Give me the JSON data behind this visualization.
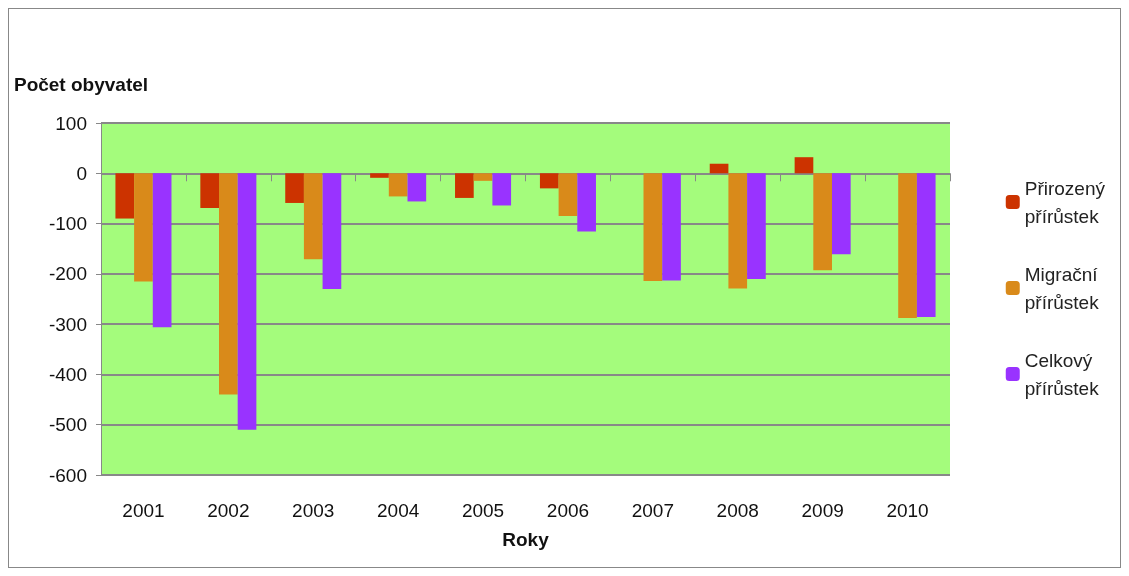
{
  "chart_data": {
    "type": "bar",
    "ylabel": "Počet obyvatel",
    "xlabel": "Roky",
    "categories": [
      "2001",
      "2002",
      "2003",
      "2004",
      "2005",
      "2006",
      "2007",
      "2008",
      "2009",
      "2010"
    ],
    "series": [
      {
        "name": "Přirozený přírůstek",
        "color": "#cc3300",
        "values": [
          -90,
          -69,
          -59,
          -9,
          -49,
          -30,
          0,
          19,
          32,
          null
        ]
      },
      {
        "name": "Migrační přírůstek",
        "color": "#d98a1a",
        "values": [
          -215,
          -440,
          -171,
          -46,
          -15,
          -85,
          -214,
          -229,
          -193,
          -288
        ]
      },
      {
        "name": "Celkový přírůstek",
        "color": "#9933ff",
        "values": [
          -306,
          -510,
          -230,
          -56,
          -64,
          -116,
          -213,
          -210,
          -161,
          -286
        ]
      }
    ],
    "ylim": [
      -600,
      100
    ],
    "yticks": [
      -600,
      -500,
      -400,
      -300,
      -200,
      -100,
      0,
      100
    ],
    "grid": "y",
    "legend": "right"
  }
}
